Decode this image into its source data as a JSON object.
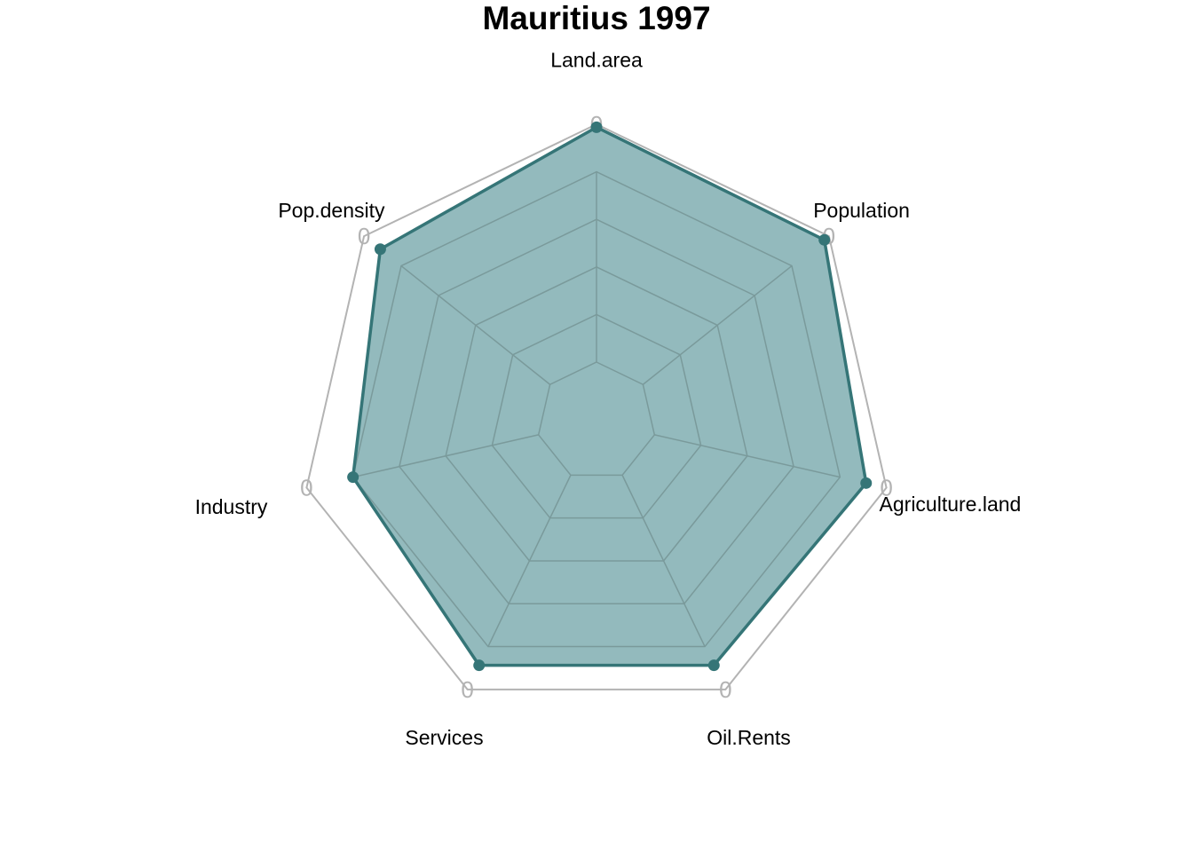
{
  "chart_data": {
    "type": "radar",
    "title": "Mauritius 1997",
    "axes": [
      "Land.area",
      "Population",
      "Agriculture.land",
      "Oil.Rents",
      "Services",
      "Industry",
      "Pop.density"
    ],
    "max_label": "0",
    "grid_levels": 5,
    "series": [
      {
        "values": [
          0.99,
          0.98,
          0.93,
          0.91,
          0.91,
          0.84,
          0.93
        ]
      }
    ],
    "colors": {
      "fill": "#3a8287",
      "fill_opacity": 0.55,
      "line": "#357577",
      "grid": "#7a9a9b",
      "outer": "#b3b3b3"
    }
  }
}
